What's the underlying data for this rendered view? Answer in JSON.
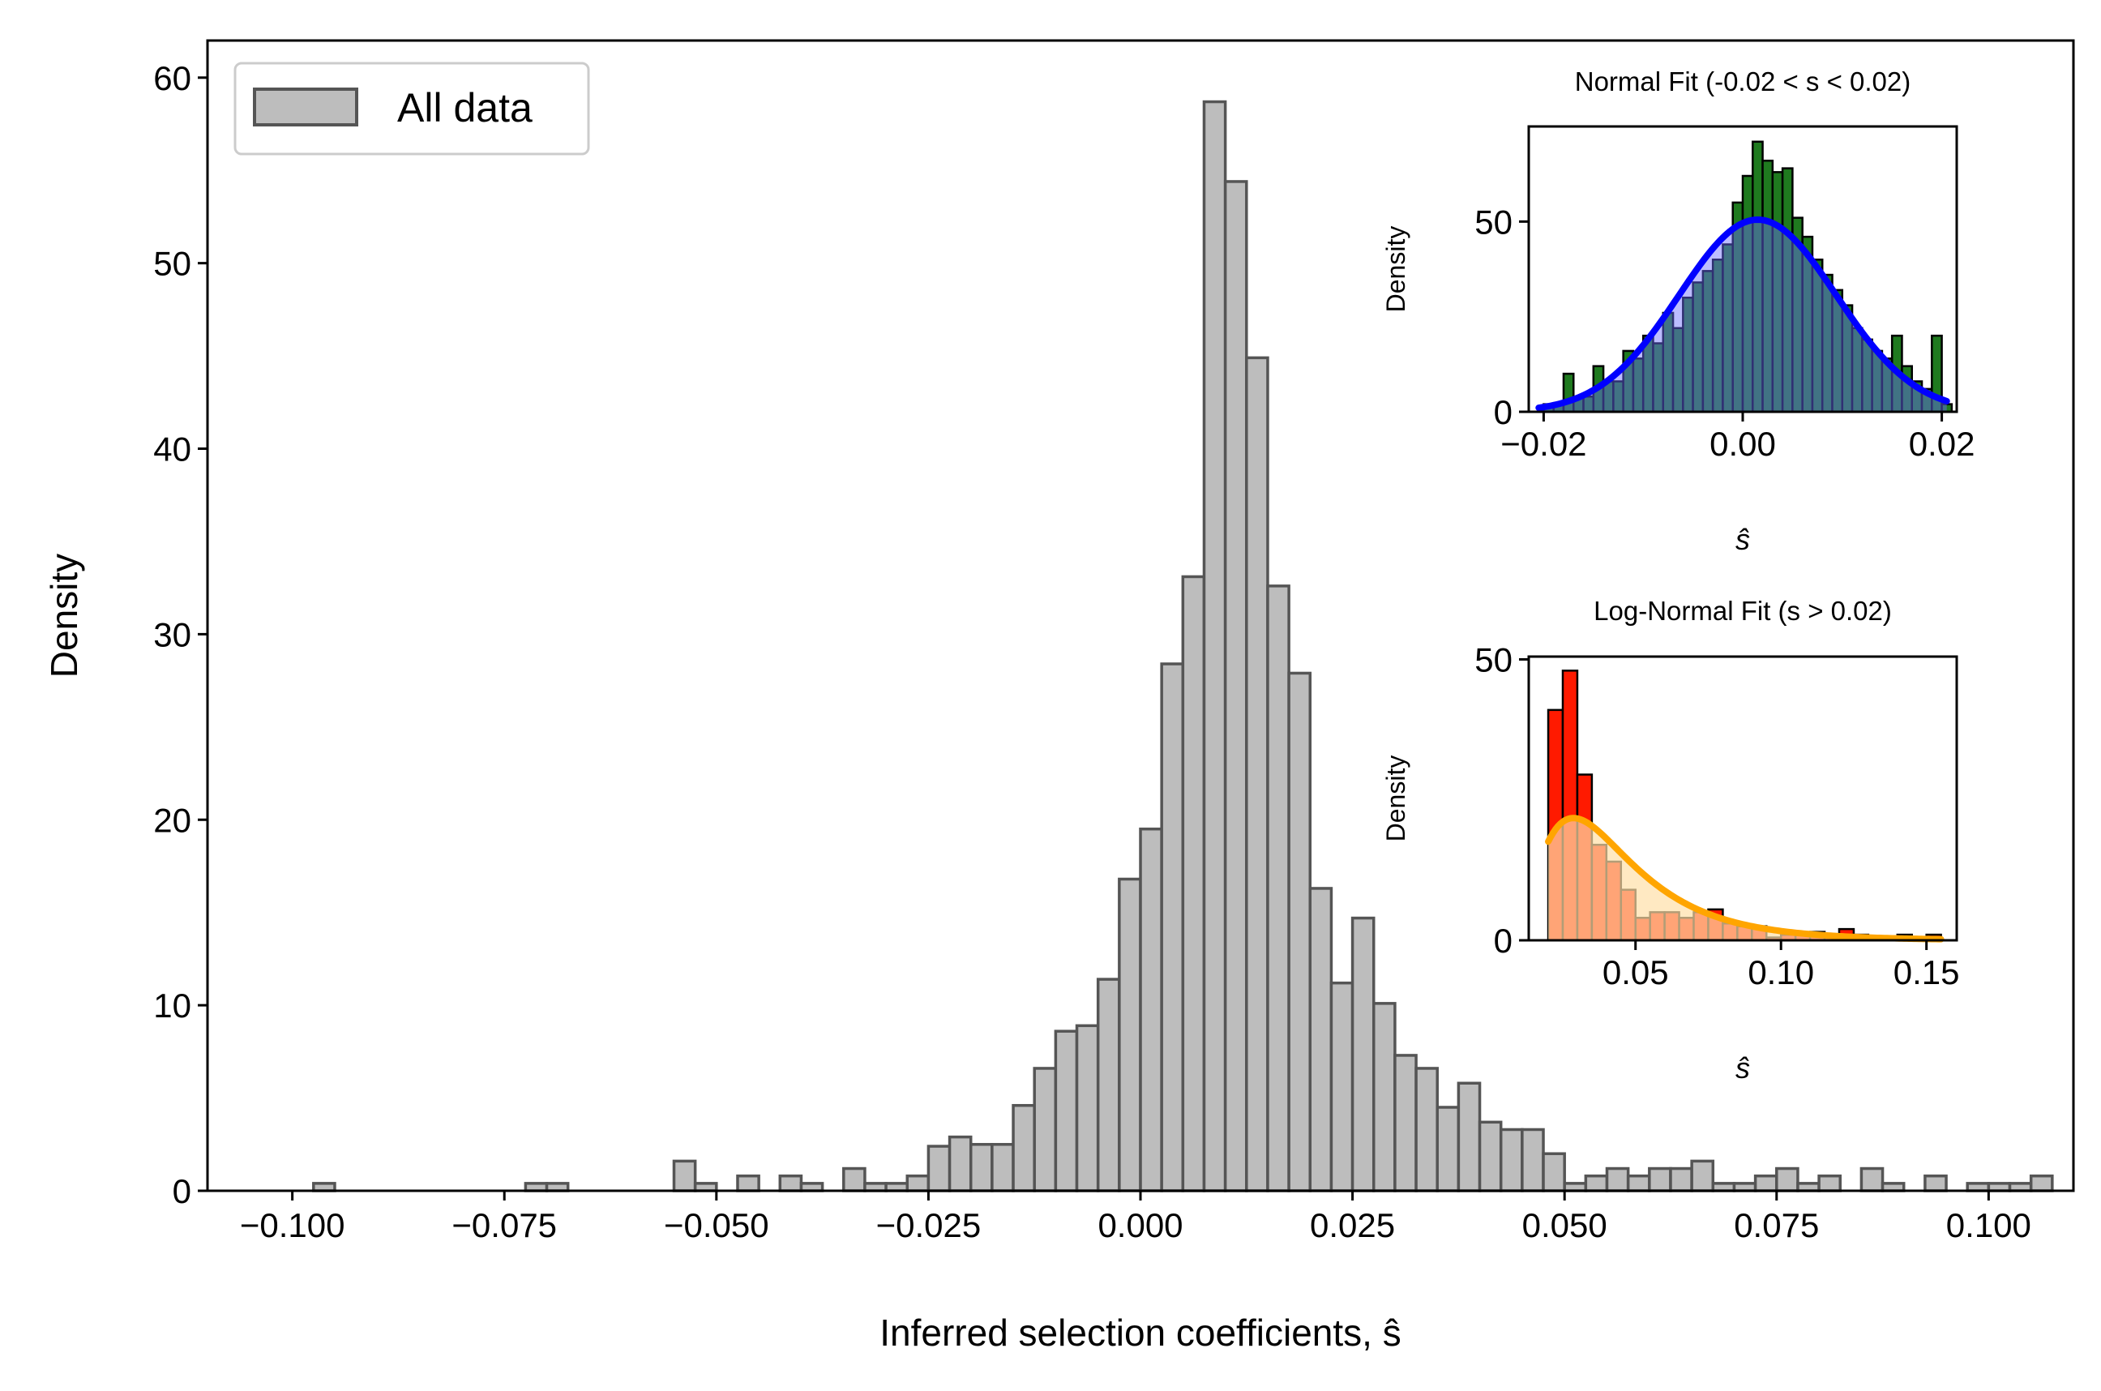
{
  "chart_data": [
    {
      "type": "bar",
      "subtype": "histogram",
      "title": "",
      "xlabel": "Inferred selection coefficients, ŝ",
      "ylabel": "Density",
      "xlim": [
        -0.11,
        0.11
      ],
      "ylim": [
        0,
        62
      ],
      "x_ticks": [
        -0.1,
        -0.075,
        -0.05,
        -0.025,
        0.0,
        0.025,
        0.05,
        0.075,
        0.1
      ],
      "x_tick_labels": [
        "−0.100",
        "−0.075",
        "−0.050",
        "−0.025",
        "0.000",
        "0.025",
        "0.050",
        "0.075",
        "0.100"
      ],
      "y_ticks": [
        0,
        10,
        20,
        30,
        40,
        50,
        60
      ],
      "y_tick_labels": [
        "0",
        "10",
        "20",
        "30",
        "40",
        "50",
        "60"
      ],
      "grid": false,
      "legend": {
        "position": "top-left",
        "entries": [
          "All data"
        ]
      },
      "colors": {
        "bar_fill": "#bdbdbd",
        "bar_edge": "#555555"
      },
      "bin_width": 0.0025,
      "bins": [
        [
          -0.09625,
          0.4
        ],
        [
          -0.07125,
          0.4
        ],
        [
          -0.06875,
          0.4
        ],
        [
          -0.05375,
          1.6
        ],
        [
          -0.05125,
          0.4
        ],
        [
          -0.04625,
          0.8
        ],
        [
          -0.04125,
          0.8
        ],
        [
          -0.03875,
          0.4
        ],
        [
          -0.03375,
          1.2
        ],
        [
          -0.03125,
          0.4
        ],
        [
          -0.02875,
          0.4
        ],
        [
          -0.02625,
          0.8
        ],
        [
          -0.02375,
          2.4
        ],
        [
          -0.02125,
          2.9
        ],
        [
          -0.01875,
          2.5
        ],
        [
          -0.01625,
          2.5
        ],
        [
          -0.01375,
          4.6
        ],
        [
          -0.01125,
          6.6
        ],
        [
          -0.00875,
          8.6
        ],
        [
          -0.00625,
          8.9
        ],
        [
          -0.00375,
          11.4
        ],
        [
          -0.00125,
          16.8
        ],
        [
          0.00125,
          19.5
        ],
        [
          0.00375,
          28.4
        ],
        [
          0.00625,
          33.1
        ],
        [
          0.00875,
          58.7
        ],
        [
          0.01125,
          54.4
        ],
        [
          0.01375,
          44.9
        ],
        [
          0.01625,
          32.6
        ],
        [
          0.01875,
          27.9
        ],
        [
          0.02125,
          16.3
        ],
        [
          0.02375,
          11.2
        ],
        [
          0.02625,
          14.7
        ],
        [
          0.02875,
          10.1
        ],
        [
          0.03125,
          7.3
        ],
        [
          0.03375,
          6.6
        ],
        [
          0.03625,
          4.5
        ],
        [
          0.03875,
          5.8
        ],
        [
          0.04125,
          3.7
        ],
        [
          0.04375,
          3.3
        ],
        [
          0.04625,
          3.3
        ],
        [
          0.04875,
          2.0
        ],
        [
          0.05125,
          0.4
        ],
        [
          0.05375,
          0.8
        ],
        [
          0.05625,
          1.2
        ],
        [
          0.05875,
          0.8
        ],
        [
          0.06125,
          1.2
        ],
        [
          0.06375,
          1.2
        ],
        [
          0.06625,
          1.6
        ],
        [
          0.06875,
          0.4
        ],
        [
          0.07125,
          0.4
        ],
        [
          0.07375,
          0.8
        ],
        [
          0.07625,
          1.2
        ],
        [
          0.07875,
          0.4
        ],
        [
          0.08125,
          0.8
        ],
        [
          0.08625,
          1.2
        ],
        [
          0.08875,
          0.4
        ],
        [
          0.09375,
          0.8
        ],
        [
          0.09875,
          0.4
        ],
        [
          0.10125,
          0.4
        ],
        [
          0.10375,
          0.4
        ],
        [
          0.10625,
          0.8
        ]
      ]
    },
    {
      "type": "bar",
      "subtype": "histogram-with-fit",
      "title": "Normal Fit (-0.02 < s < 0.02)",
      "xlabel": "ŝ",
      "ylabel": "Density",
      "xlim": [
        -0.0215,
        0.0215
      ],
      "ylim": [
        0,
        75
      ],
      "x_ticks": [
        -0.02,
        0.0,
        0.02
      ],
      "x_tick_labels": [
        "−0.02",
        "0.00",
        "0.02"
      ],
      "y_ticks": [
        0,
        50
      ],
      "y_tick_labels": [
        "0",
        "50"
      ],
      "colors": {
        "bar_fill": "#1f7a1f",
        "bar_edge": "#000000",
        "fit_line": "#0000ff",
        "fit_fill": "#6a6aff"
      },
      "bin_width": 0.001,
      "bins": [
        [
          -0.0195,
          2
        ],
        [
          -0.0185,
          2
        ],
        [
          -0.0175,
          10
        ],
        [
          -0.0165,
          4
        ],
        [
          -0.0155,
          4
        ],
        [
          -0.0145,
          12
        ],
        [
          -0.0135,
          8
        ],
        [
          -0.0125,
          8
        ],
        [
          -0.0115,
          16
        ],
        [
          -0.0105,
          14
        ],
        [
          -0.0095,
          20
        ],
        [
          -0.0085,
          18
        ],
        [
          -0.0075,
          26
        ],
        [
          -0.0065,
          22
        ],
        [
          -0.0055,
          30
        ],
        [
          -0.0045,
          34
        ],
        [
          -0.0035,
          37
        ],
        [
          -0.0025,
          40
        ],
        [
          -0.0015,
          44
        ],
        [
          -0.0005,
          55
        ],
        [
          0.0005,
          62
        ],
        [
          0.0015,
          71
        ],
        [
          0.0025,
          66
        ],
        [
          0.0035,
          63
        ],
        [
          0.0045,
          64
        ],
        [
          0.0055,
          51
        ],
        [
          0.0065,
          46
        ],
        [
          0.0075,
          40
        ],
        [
          0.0085,
          36
        ],
        [
          0.0095,
          32
        ],
        [
          0.0105,
          28
        ],
        [
          0.0115,
          22
        ],
        [
          0.0125,
          19
        ],
        [
          0.0135,
          16
        ],
        [
          0.0145,
          14
        ],
        [
          0.0155,
          20
        ],
        [
          0.0165,
          12
        ],
        [
          0.0175,
          8
        ],
        [
          0.0185,
          6
        ],
        [
          0.0195,
          20
        ],
        [
          0.0205,
          2
        ]
      ],
      "fit": {
        "distribution": "normal",
        "mean": 0.0015,
        "std": 0.0079,
        "x_range": [
          -0.0205,
          0.0205
        ]
      }
    },
    {
      "type": "bar",
      "subtype": "histogram-with-fit",
      "title": "Log-Normal Fit (s > 0.02)",
      "xlabel": "ŝ",
      "ylabel": "Density",
      "xlim": [
        0.0133,
        0.1604
      ],
      "ylim": [
        0,
        50.5
      ],
      "x_ticks": [
        0.05,
        0.1,
        0.15
      ],
      "x_tick_labels": [
        "0.05",
        "0.10",
        "0.15"
      ],
      "y_ticks": [
        0,
        50
      ],
      "y_tick_labels": [
        "0",
        "50"
      ],
      "colors": {
        "bar_fill": "#ff1a00",
        "bar_edge": "#000000",
        "fit_line": "#ffa500",
        "fit_fill": "#ffe0a8"
      },
      "bin_width": 0.005,
      "bins": [
        [
          0.0225,
          41.0
        ],
        [
          0.0275,
          48.0
        ],
        [
          0.0325,
          29.5
        ],
        [
          0.0375,
          17.0
        ],
        [
          0.0425,
          14.0
        ],
        [
          0.0475,
          9.0
        ],
        [
          0.0525,
          4.0
        ],
        [
          0.0575,
          5.0
        ],
        [
          0.0625,
          5.0
        ],
        [
          0.0675,
          4.0
        ],
        [
          0.0725,
          5.0
        ],
        [
          0.0775,
          5.5
        ],
        [
          0.0825,
          3.0
        ],
        [
          0.0875,
          2.5
        ],
        [
          0.0925,
          2.5
        ],
        [
          0.0975,
          0.5
        ],
        [
          0.1025,
          1.0
        ],
        [
          0.1075,
          1.0
        ],
        [
          0.1125,
          1.5
        ],
        [
          0.1175,
          1.0
        ],
        [
          0.1225,
          2.0
        ],
        [
          0.1275,
          1.0
        ],
        [
          0.1325,
          0.5
        ],
        [
          0.1375,
          0.5
        ],
        [
          0.1425,
          1.0
        ],
        [
          0.1475,
          0.5
        ],
        [
          0.1525,
          1.0
        ]
      ],
      "fit": {
        "distribution": "lognormal",
        "mu": -3.25,
        "sigma": 0.55,
        "x_range": [
          0.02,
          0.155
        ]
      }
    }
  ]
}
